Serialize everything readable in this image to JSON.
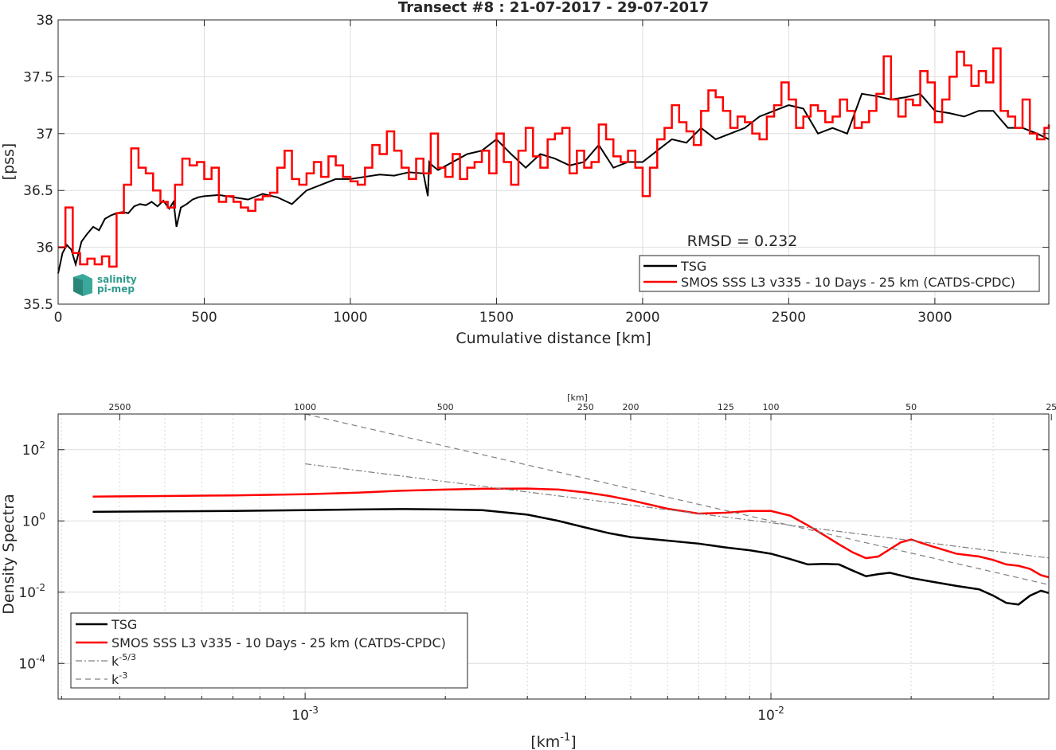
{
  "figure": {
    "title": "Transect #8 : 21-07-2017 - 29-07-2017",
    "rmsd_text": "RMSD = 0.232",
    "logo": {
      "line1": "salinity",
      "line2": "pi-mep"
    }
  },
  "chart_data": [
    {
      "type": "line",
      "title": "Transect #8 : 21-07-2017 - 29-07-2017",
      "xlabel": "Cumulative distance [km]",
      "ylabel": "[pss]",
      "xlim": [
        0,
        3390
      ],
      "ylim": [
        35.5,
        38
      ],
      "xticks": [
        0,
        500,
        1000,
        1500,
        2000,
        2500,
        3000
      ],
      "xtick_labels": [
        "0",
        "500",
        "1000",
        "1500",
        "2000",
        "2500",
        "3000"
      ],
      "yticks": [
        35.5,
        36,
        36.5,
        37,
        37.5,
        38
      ],
      "ytick_labels": [
        "35.5",
        "36",
        "36.5",
        "37",
        "37.5",
        "38"
      ],
      "grid": true,
      "legend_position": "bottom-right",
      "series": [
        {
          "name": "TSG",
          "color": "#000000",
          "x": [
            0,
            15,
            30,
            45,
            60,
            80,
            100,
            120,
            140,
            160,
            180,
            200,
            220,
            240,
            260,
            280,
            300,
            320,
            340,
            360,
            380,
            395,
            405,
            420,
            440,
            460,
            480,
            500,
            550,
            600,
            650,
            700,
            750,
            800,
            850,
            900,
            950,
            1000,
            1050,
            1100,
            1150,
            1200,
            1250,
            1265,
            1270,
            1280,
            1300,
            1350,
            1400,
            1450,
            1500,
            1550,
            1600,
            1650,
            1700,
            1750,
            1800,
            1850,
            1900,
            1950,
            2000,
            2050,
            2100,
            2150,
            2200,
            2250,
            2300,
            2350,
            2400,
            2450,
            2500,
            2550,
            2600,
            2650,
            2700,
            2750,
            2800,
            2850,
            2900,
            2950,
            3000,
            3050,
            3100,
            3150,
            3200,
            3250,
            3300,
            3350,
            3390
          ],
          "y": [
            35.77,
            35.95,
            36.02,
            35.98,
            35.85,
            36.05,
            36.12,
            36.18,
            36.15,
            36.25,
            36.28,
            36.3,
            36.31,
            36.3,
            36.36,
            36.38,
            36.37,
            36.4,
            36.36,
            36.41,
            36.34,
            36.4,
            36.18,
            36.35,
            36.38,
            36.42,
            36.44,
            36.45,
            36.46,
            36.44,
            36.42,
            36.47,
            36.44,
            36.38,
            36.5,
            36.55,
            36.6,
            36.6,
            36.62,
            36.64,
            36.63,
            36.66,
            36.65,
            36.45,
            36.75,
            36.72,
            36.68,
            36.75,
            36.82,
            36.85,
            36.95,
            36.82,
            36.7,
            36.82,
            36.78,
            36.72,
            36.75,
            36.9,
            36.7,
            36.75,
            36.75,
            36.85,
            36.95,
            36.92,
            37.05,
            36.95,
            37.0,
            37.05,
            37.15,
            37.2,
            37.25,
            37.22,
            37.0,
            37.05,
            37.0,
            37.35,
            37.33,
            37.3,
            37.32,
            37.35,
            37.2,
            37.18,
            37.15,
            37.2,
            37.2,
            37.05,
            37.05,
            37.0,
            36.95
          ]
        },
        {
          "name": "SMOS SSS L3 v335 - 10 Days - 25 km (CATDS-CPDC)",
          "color": "#ff0000",
          "x": [
            0,
            25,
            50,
            75,
            100,
            125,
            150,
            175,
            200,
            225,
            250,
            275,
            300,
            325,
            350,
            375,
            400,
            425,
            450,
            475,
            500,
            525,
            550,
            575,
            600,
            625,
            650,
            675,
            700,
            725,
            750,
            775,
            800,
            825,
            850,
            875,
            900,
            925,
            950,
            975,
            1000,
            1025,
            1050,
            1075,
            1100,
            1125,
            1150,
            1175,
            1200,
            1225,
            1250,
            1275,
            1300,
            1325,
            1350,
            1375,
            1400,
            1425,
            1450,
            1475,
            1500,
            1525,
            1550,
            1575,
            1600,
            1625,
            1650,
            1675,
            1700,
            1725,
            1750,
            1775,
            1800,
            1825,
            1850,
            1875,
            1900,
            1925,
            1950,
            1975,
            2000,
            2025,
            2050,
            2075,
            2100,
            2125,
            2150,
            2175,
            2200,
            2225,
            2250,
            2275,
            2300,
            2325,
            2350,
            2375,
            2400,
            2425,
            2450,
            2475,
            2500,
            2525,
            2550,
            2575,
            2600,
            2625,
            2650,
            2675,
            2700,
            2725,
            2750,
            2775,
            2800,
            2825,
            2850,
            2875,
            2900,
            2925,
            2950,
            2975,
            3000,
            3025,
            3050,
            3075,
            3100,
            3125,
            3150,
            3175,
            3200,
            3225,
            3250,
            3275,
            3300,
            3325,
            3350,
            3375,
            3390
          ],
          "y": [
            36.0,
            36.35,
            35.95,
            35.85,
            35.9,
            35.85,
            35.92,
            35.83,
            36.3,
            36.55,
            36.87,
            36.7,
            36.65,
            36.5,
            36.4,
            36.35,
            36.55,
            36.78,
            36.72,
            36.75,
            36.6,
            36.7,
            36.4,
            36.45,
            36.4,
            36.35,
            36.32,
            36.42,
            36.45,
            36.48,
            36.7,
            36.85,
            36.6,
            36.55,
            36.65,
            36.75,
            36.62,
            36.8,
            36.72,
            36.62,
            36.58,
            36.55,
            36.7,
            36.9,
            36.82,
            37.02,
            36.85,
            36.7,
            36.6,
            36.78,
            36.65,
            37.0,
            36.7,
            36.62,
            36.82,
            36.6,
            36.7,
            36.75,
            36.85,
            36.65,
            37.0,
            36.75,
            36.55,
            36.85,
            37.05,
            36.8,
            36.7,
            36.95,
            37.0,
            37.05,
            36.65,
            36.85,
            36.7,
            36.75,
            37.08,
            36.95,
            36.8,
            36.75,
            36.85,
            36.7,
            36.45,
            36.7,
            36.95,
            37.05,
            37.25,
            37.1,
            37.02,
            36.9,
            37.2,
            37.38,
            37.32,
            37.2,
            37.05,
            37.15,
            37.1,
            37.0,
            36.95,
            37.15,
            37.25,
            37.45,
            37.3,
            37.05,
            37.15,
            37.25,
            37.2,
            37.1,
            37.15,
            37.3,
            37.2,
            37.05,
            37.1,
            37.2,
            37.35,
            37.68,
            37.3,
            37.15,
            37.3,
            37.25,
            37.55,
            37.45,
            37.1,
            37.3,
            37.5,
            37.72,
            37.6,
            37.42,
            37.55,
            37.45,
            37.75,
            37.2,
            37.15,
            37.05,
            37.3,
            37.0,
            36.95,
            37.05,
            37.08
          ]
        }
      ]
    },
    {
      "type": "line",
      "xlabel": "[km-1]",
      "ylabel": "Density Spectra",
      "xscale": "log",
      "yscale": "log",
      "xlim": [
        0.000295,
        0.0395
      ],
      "ylim": [
        1e-05,
        1000
      ],
      "xticks_major": [
        0.001,
        0.01
      ],
      "xtick_labels": [
        "10",
        "10"
      ],
      "xtick_exponents": [
        "-3",
        "-2"
      ],
      "yticks": [
        0.0001,
        0.01,
        1,
        100
      ],
      "ytick_labels": [
        "10",
        "10",
        "10",
        "10"
      ],
      "ytick_exponents": [
        "-4",
        "-2",
        "0",
        "2"
      ],
      "top_axis_label": "[km]",
      "top_ticks_km": [
        2500,
        1000,
        500,
        250,
        200,
        125,
        100,
        50,
        25
      ],
      "top_tick_labels": [
        "2500",
        "1000",
        "500",
        "250",
        "200",
        "125",
        "100",
        "50",
        "25"
      ],
      "xlabel_base": "[km",
      "xlabel_exp": "-1",
      "xlabel_tail": "]",
      "grid": true,
      "legend_position": "bottom-left",
      "series": [
        {
          "name": "TSG",
          "color": "#000000",
          "x": [
            0.00035,
            0.0005,
            0.0007,
            0.001,
            0.0013,
            0.0016,
            0.002,
            0.0024,
            0.003,
            0.0035,
            0.004,
            0.0045,
            0.005,
            0.006,
            0.007,
            0.008,
            0.009,
            0.01,
            0.011,
            0.012,
            0.013,
            0.014,
            0.015,
            0.016,
            0.017,
            0.018,
            0.02,
            0.022,
            0.025,
            0.028,
            0.03,
            0.032,
            0.034,
            0.036,
            0.038,
            0.04
          ],
          "y": [
            1.8,
            1.85,
            1.9,
            2.0,
            2.1,
            2.15,
            2.1,
            2.0,
            1.5,
            1.0,
            0.65,
            0.45,
            0.35,
            0.28,
            0.23,
            0.18,
            0.15,
            0.12,
            0.085,
            0.06,
            0.062,
            0.06,
            0.04,
            0.028,
            0.032,
            0.035,
            0.025,
            0.02,
            0.015,
            0.012,
            0.008,
            0.005,
            0.0045,
            0.008,
            0.011,
            0.009
          ]
        },
        {
          "name": "SMOS SSS L3 v335 - 10 Days - 25 km (CATDS-CPDC)",
          "color": "#ff0000",
          "x": [
            0.00035,
            0.0005,
            0.0007,
            0.001,
            0.0013,
            0.0016,
            0.002,
            0.0024,
            0.003,
            0.0035,
            0.004,
            0.0045,
            0.005,
            0.006,
            0.007,
            0.008,
            0.009,
            0.01,
            0.011,
            0.012,
            0.013,
            0.014,
            0.015,
            0.016,
            0.017,
            0.018,
            0.019,
            0.02,
            0.022,
            0.025,
            0.028,
            0.03,
            0.032,
            0.034,
            0.036,
            0.038,
            0.04
          ],
          "y": [
            4.8,
            5.0,
            5.2,
            5.6,
            6.2,
            7.0,
            7.6,
            8.0,
            8.1,
            7.6,
            6.3,
            5.0,
            3.8,
            2.2,
            1.6,
            1.7,
            1.9,
            1.9,
            1.4,
            0.75,
            0.4,
            0.22,
            0.13,
            0.09,
            0.1,
            0.16,
            0.25,
            0.3,
            0.2,
            0.12,
            0.1,
            0.08,
            0.06,
            0.055,
            0.045,
            0.03,
            0.025
          ]
        },
        {
          "name": "k-5/3",
          "color": "#808080",
          "style": "dashdot",
          "x": [
            0.001,
            0.04
          ],
          "y": [
            40,
            0.089
          ]
        },
        {
          "name": "k-3",
          "color": "#808080",
          "style": "dashed",
          "x": [
            0.001,
            0.04
          ],
          "y": [
            1000,
            0.0156
          ]
        }
      ],
      "legend": [
        {
          "label": "TSG",
          "color": "#000000",
          "style": "solid",
          "exp": ""
        },
        {
          "label": "SMOS SSS L3 v335 - 10 Days - 25 km (CATDS-CPDC)",
          "color": "#ff0000",
          "style": "solid",
          "exp": ""
        },
        {
          "label": "k",
          "color": "#808080",
          "style": "dashdot",
          "exp": "-5/3"
        },
        {
          "label": "k",
          "color": "#808080",
          "style": "dashed",
          "exp": "-3"
        }
      ]
    }
  ]
}
